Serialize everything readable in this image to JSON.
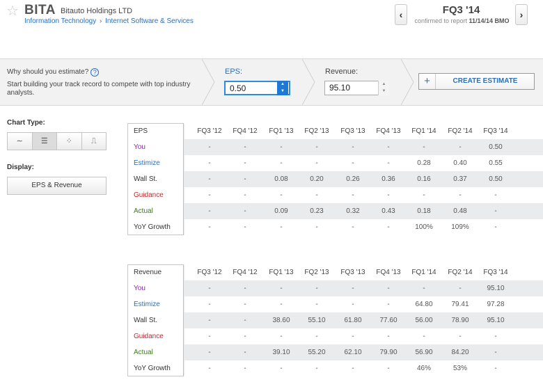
{
  "header": {
    "ticker": "BITA",
    "company": "Bitauto Holdings LTD",
    "sector": "Information Technology",
    "separator": "›",
    "industry": "Internet Software & Services",
    "quarter": "FQ3 '14",
    "confirmed_prefix": "confirmed to report",
    "confirmed_date": "11/14/14 BMO",
    "prev_label": "‹",
    "next_label": "›"
  },
  "estimate_bar": {
    "question": "Why should you estimate?",
    "help_label": "?",
    "description": "Start building your track record to compete with top industry analysts.",
    "eps_label": "EPS:",
    "eps_value": "0.50",
    "revenue_label": "Revenue:",
    "revenue_value": "95.10",
    "create_plus": "+",
    "create_label": "CREATE ESTIMATE"
  },
  "controls": {
    "chart_type_label": "Chart Type:",
    "chart_types": [
      {
        "icon": "line-chart-icon",
        "glyph": "∼"
      },
      {
        "icon": "table-icon",
        "glyph": "☰"
      },
      {
        "icon": "scatter-icon",
        "glyph": "⁘"
      },
      {
        "icon": "step-chart-icon",
        "glyph": "⎍"
      }
    ],
    "display_label": "Display:",
    "display_value": "EPS & Revenue"
  },
  "quarters": [
    "FQ3 '12",
    "FQ4 '12",
    "FQ1 '13",
    "FQ2 '13",
    "FQ3 '13",
    "FQ4 '13",
    "FQ1 '14",
    "FQ2 '14",
    "FQ3 '14"
  ],
  "eps_table": {
    "title": "EPS",
    "rows": [
      {
        "label": "You",
        "values": [
          "-",
          "-",
          "-",
          "-",
          "-",
          "-",
          "-",
          "-",
          "0.50"
        ]
      },
      {
        "label": "Estimize",
        "values": [
          "-",
          "-",
          "-",
          "-",
          "-",
          "-",
          "0.28",
          "0.40",
          "0.55"
        ]
      },
      {
        "label": "Wall St.",
        "values": [
          "-",
          "-",
          "0.08",
          "0.20",
          "0.26",
          "0.36",
          "0.16",
          "0.37",
          "0.50"
        ]
      },
      {
        "label": "Guidance",
        "values": [
          "-",
          "-",
          "-",
          "-",
          "-",
          "-",
          "-",
          "-",
          "-"
        ]
      },
      {
        "label": "Actual",
        "values": [
          "-",
          "-",
          "0.09",
          "0.23",
          "0.32",
          "0.43",
          "0.18",
          "0.48",
          "-"
        ]
      },
      {
        "label": "YoY Growth",
        "values": [
          "-",
          "-",
          "-",
          "-",
          "-",
          "-",
          "100%",
          "109%",
          "-"
        ]
      }
    ]
  },
  "revenue_table": {
    "title": "Revenue",
    "rows": [
      {
        "label": "You",
        "values": [
          "-",
          "-",
          "-",
          "-",
          "-",
          "-",
          "-",
          "-",
          "95.10"
        ]
      },
      {
        "label": "Estimize",
        "values": [
          "-",
          "-",
          "-",
          "-",
          "-",
          "-",
          "64.80",
          "79.41",
          "97.28"
        ]
      },
      {
        "label": "Wall St.",
        "values": [
          "-",
          "-",
          "38.60",
          "55.10",
          "61.80",
          "77.60",
          "56.00",
          "78.90",
          "95.10"
        ]
      },
      {
        "label": "Guidance",
        "values": [
          "-",
          "-",
          "-",
          "-",
          "-",
          "-",
          "-",
          "-",
          "-"
        ]
      },
      {
        "label": "Actual",
        "values": [
          "-",
          "-",
          "39.10",
          "55.20",
          "62.10",
          "79.90",
          "56.90",
          "84.20",
          "-"
        ]
      },
      {
        "label": "YoY Growth",
        "values": [
          "-",
          "-",
          "-",
          "-",
          "-",
          "-",
          "46%",
          "53%",
          "-"
        ]
      }
    ]
  },
  "colors": {
    "accent": "#2a6fb7",
    "you": "#8a2aa8",
    "guidance": "#c0282d",
    "actual": "#3a7a1e"
  }
}
